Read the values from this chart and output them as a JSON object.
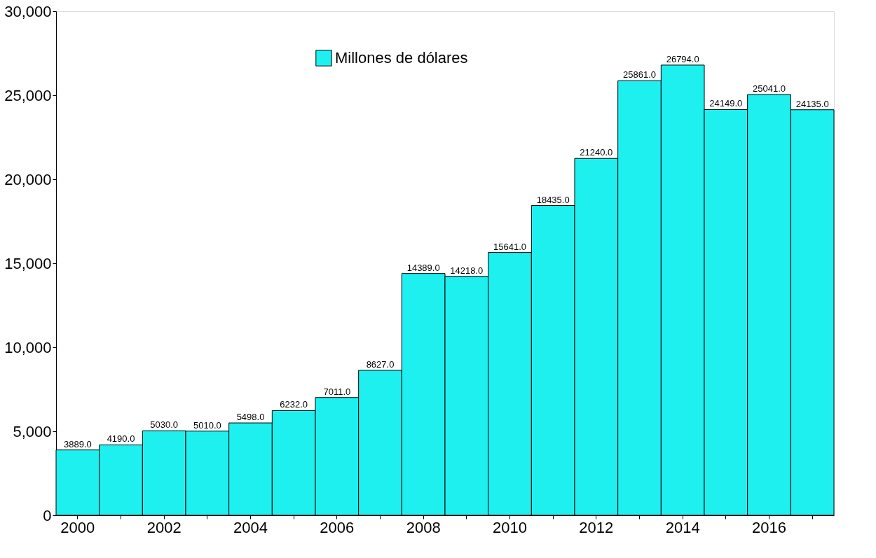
{
  "chart_data": {
    "type": "bar",
    "categories": [
      "2000",
      null,
      "2002",
      null,
      "2004",
      null,
      "2006",
      null,
      "2008",
      null,
      "2010",
      null,
      "2012",
      null,
      "2014",
      null,
      "2016",
      null
    ],
    "series": [
      {
        "name": "Millones de dólares",
        "color": "#1ef0f0",
        "values": [
          3889,
          4190,
          5030,
          5010,
          5498,
          6232,
          7011,
          8627,
          14389,
          14218,
          15641,
          18435,
          21240,
          25861,
          26794,
          24149,
          25041,
          24135
        ],
        "value_labels": [
          "3889.0",
          "4190.0",
          "5030.0",
          "5010.0",
          "5498.0",
          "6232.0",
          "7011.0",
          "8627.0",
          "14389.0",
          "14218.0",
          "15641.0",
          "18435.0",
          "21240.0",
          "25861.0",
          "26794.0",
          "24149.0",
          "25041.0",
          "24135.0"
        ]
      }
    ],
    "ylim": [
      0,
      30000
    ],
    "yticks": [
      {
        "value": 0,
        "label": "0"
      },
      {
        "value": 5000,
        "label": "5,000"
      },
      {
        "value": 10000,
        "label": "10,000"
      },
      {
        "value": 15000,
        "label": "15,000"
      },
      {
        "value": 20000,
        "label": "20,000"
      },
      {
        "value": 25000,
        "label": "25,000"
      },
      {
        "value": 30000,
        "label": "30,000"
      }
    ],
    "grid": false,
    "legend": "top"
  }
}
